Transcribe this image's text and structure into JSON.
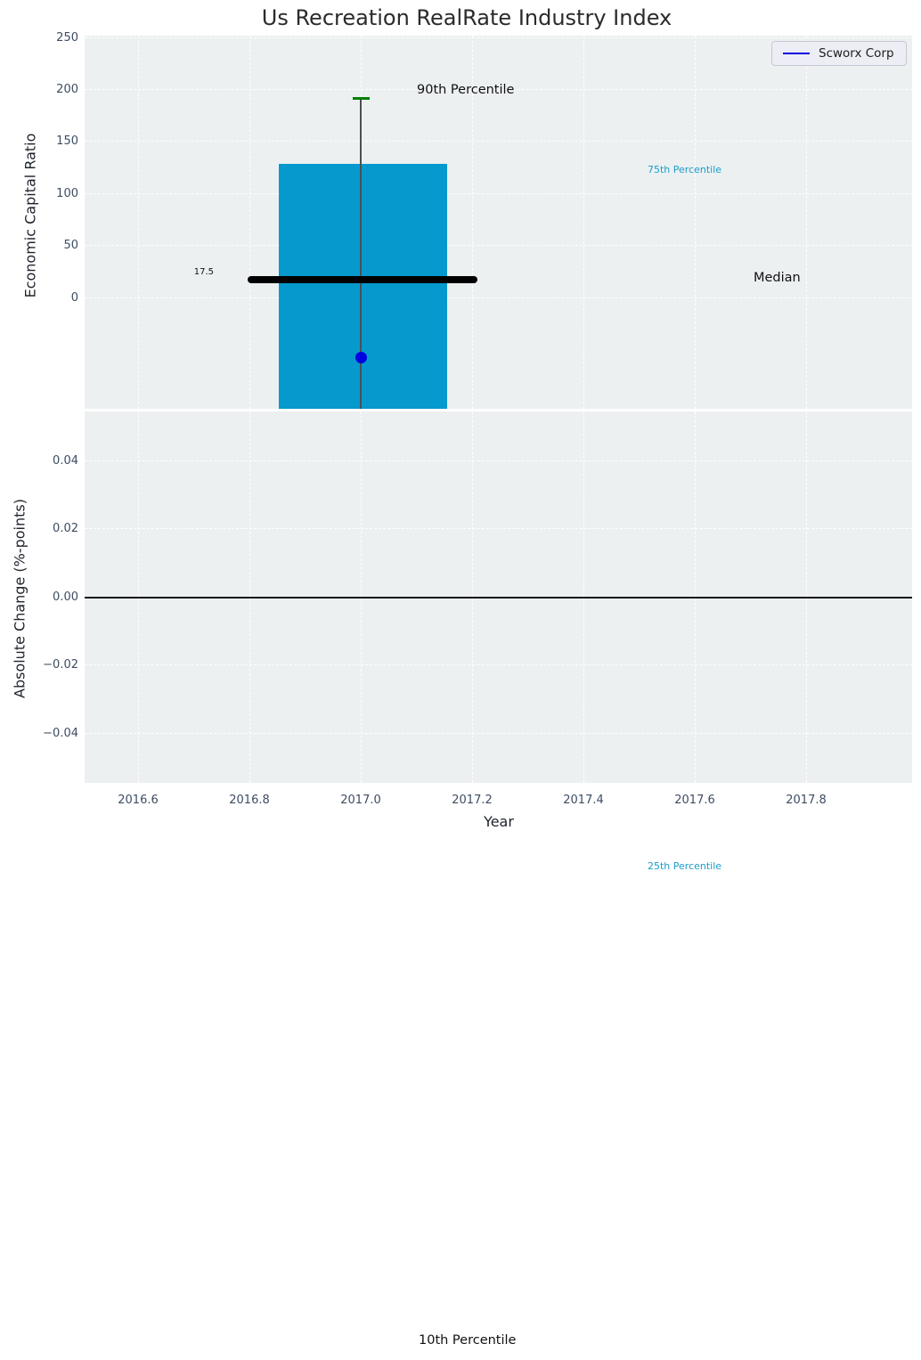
{
  "title": "Us Recreation RealRate Industry Index",
  "legend": {
    "label": "Scworx Corp"
  },
  "colors": {
    "figure_background": "#ffffff",
    "axes_background": "#ecf0f1",
    "gridline": "#ffffff",
    "box_fill": "#0699ce",
    "median_line": "#000000",
    "whisker_line": "#4a5056",
    "whisker_cap_green": "#008000",
    "company_marker_blue": "#0000e0",
    "percentile_label_teal": "#1b9dca",
    "tick_label": "#3d4c63",
    "axis_label": "#20252d",
    "title_text": "#2b2b2b"
  },
  "chart_data": {
    "type": "box",
    "title": "Us Recreation RealRate Industry Index",
    "xlabel": "Year",
    "x_ticks": [
      "2016.6",
      "2016.8",
      "2017.0",
      "2017.2",
      "2017.4",
      "2017.6",
      "2017.8"
    ],
    "x_range": [
      2016.5,
      2018.0
    ],
    "top_panel": {
      "ylabel": "Economic Capital Ratio",
      "y_ticks": [
        "250",
        "200",
        "150",
        "100",
        "50",
        "0"
      ],
      "ylim": [
        -107,
        252
      ],
      "grid": true,
      "box": {
        "x": 2017.0,
        "box_width_years": 0.3,
        "p90_whisker_cap": 190,
        "p75_box_top": 128,
        "median": 17.5,
        "p25_box_bottom": null,
        "p10_whisker_end": null
      },
      "company_series": {
        "name": "Scworx Corp",
        "points": [
          {
            "x": 2017.0,
            "y": -58
          }
        ]
      },
      "legend_position": "upper right"
    },
    "bottom_panel": {
      "ylabel": "Absolute Change (%-points)",
      "y_ticks": [
        "0.04",
        "0.02",
        "0.00",
        "−0.02",
        "−0.04"
      ],
      "ylim": [
        -0.055,
        0.055
      ],
      "grid": true,
      "zero_line": 0,
      "series": []
    },
    "annotations": {
      "p90_label": "90th Percentile",
      "p75_label": "75th Percentile",
      "median_label": "Median",
      "p25_label": "25th Percentile",
      "p10_label": "10th Percentile",
      "median_value": "17.5"
    }
  }
}
